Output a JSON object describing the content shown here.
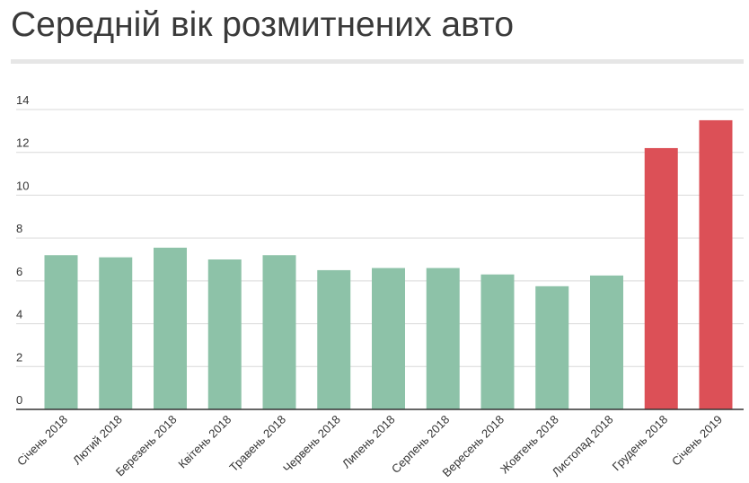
{
  "title": "Середній вік розмитнених авто",
  "chart_data": {
    "type": "bar",
    "title": "Середній вік розмитнених авто",
    "xlabel": "",
    "ylabel": "",
    "ylim": [
      0,
      14
    ],
    "yticks": [
      0,
      2,
      4,
      6,
      8,
      10,
      12,
      14
    ],
    "grid": true,
    "legend": "none",
    "categories": [
      "Січень 2018",
      "Лютий 2018",
      "Березень 2018",
      "Квітень 2018",
      "Травень 2018",
      "Червень 2018",
      "Липень 2018",
      "Серпень 2018",
      "Вересень 2018",
      "Жовтень 2018",
      "Листопад 2018",
      "Грудень 2018",
      "Січень 2019"
    ],
    "values": [
      7.2,
      7.1,
      7.55,
      7.0,
      7.2,
      6.5,
      6.6,
      6.6,
      6.3,
      5.75,
      6.25,
      12.2,
      13.5
    ],
    "colors": [
      "#8dc2a8",
      "#8dc2a8",
      "#8dc2a8",
      "#8dc2a8",
      "#8dc2a8",
      "#8dc2a8",
      "#8dc2a8",
      "#8dc2a8",
      "#8dc2a8",
      "#8dc2a8",
      "#8dc2a8",
      "#dc5057",
      "#dc5057"
    ]
  }
}
